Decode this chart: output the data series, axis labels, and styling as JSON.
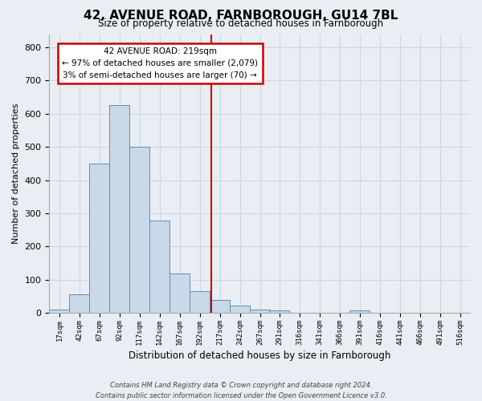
{
  "title": "42, AVENUE ROAD, FARNBOROUGH, GU14 7BL",
  "subtitle": "Size of property relative to detached houses in Farnborough",
  "xlabel": "Distribution of detached houses by size in Farnborough",
  "ylabel": "Number of detached properties",
  "bins": [
    17,
    42,
    67,
    92,
    117,
    142,
    167,
    192,
    217,
    242,
    267,
    291,
    316,
    341,
    366,
    391,
    416,
    441,
    466,
    491,
    516
  ],
  "bin_labels": [
    "17sqm",
    "42sqm",
    "67sqm",
    "92sqm",
    "117sqm",
    "142sqm",
    "167sqm",
    "192sqm",
    "217sqm",
    "242sqm",
    "267sqm",
    "291sqm",
    "316sqm",
    "341sqm",
    "366sqm",
    "391sqm",
    "416sqm",
    "441sqm",
    "466sqm",
    "491sqm",
    "516sqm"
  ],
  "bar_heights": [
    11,
    57,
    450,
    625,
    500,
    278,
    118,
    65,
    38,
    22,
    10,
    7,
    0,
    0,
    0,
    7,
    0,
    0,
    0,
    0,
    0
  ],
  "bar_color": "#c9d9e8",
  "bar_edge_color": "#5b8db8",
  "vline_x": 219,
  "vline_color": "#cc0000",
  "annotation_line1": "42 AVENUE ROAD: 219sqm",
  "annotation_line2": "← 97% of detached houses are smaller (2,079)",
  "annotation_line3": "3% of semi-detached houses are larger (70) →",
  "annotation_box_color": "#ffffff",
  "annotation_box_edge_color": "#cc0000",
  "grid_color": "#cdd6e0",
  "background_color": "#e8eef4",
  "fig_background_color": "#e8eef4",
  "ylim": [
    0,
    840
  ],
  "yticks": [
    0,
    100,
    200,
    300,
    400,
    500,
    600,
    700,
    800
  ],
  "footer_line1": "Contains HM Land Registry data © Crown copyright and database right 2024.",
  "footer_line2": "Contains public sector information licensed under the Open Government Licence v3.0."
}
